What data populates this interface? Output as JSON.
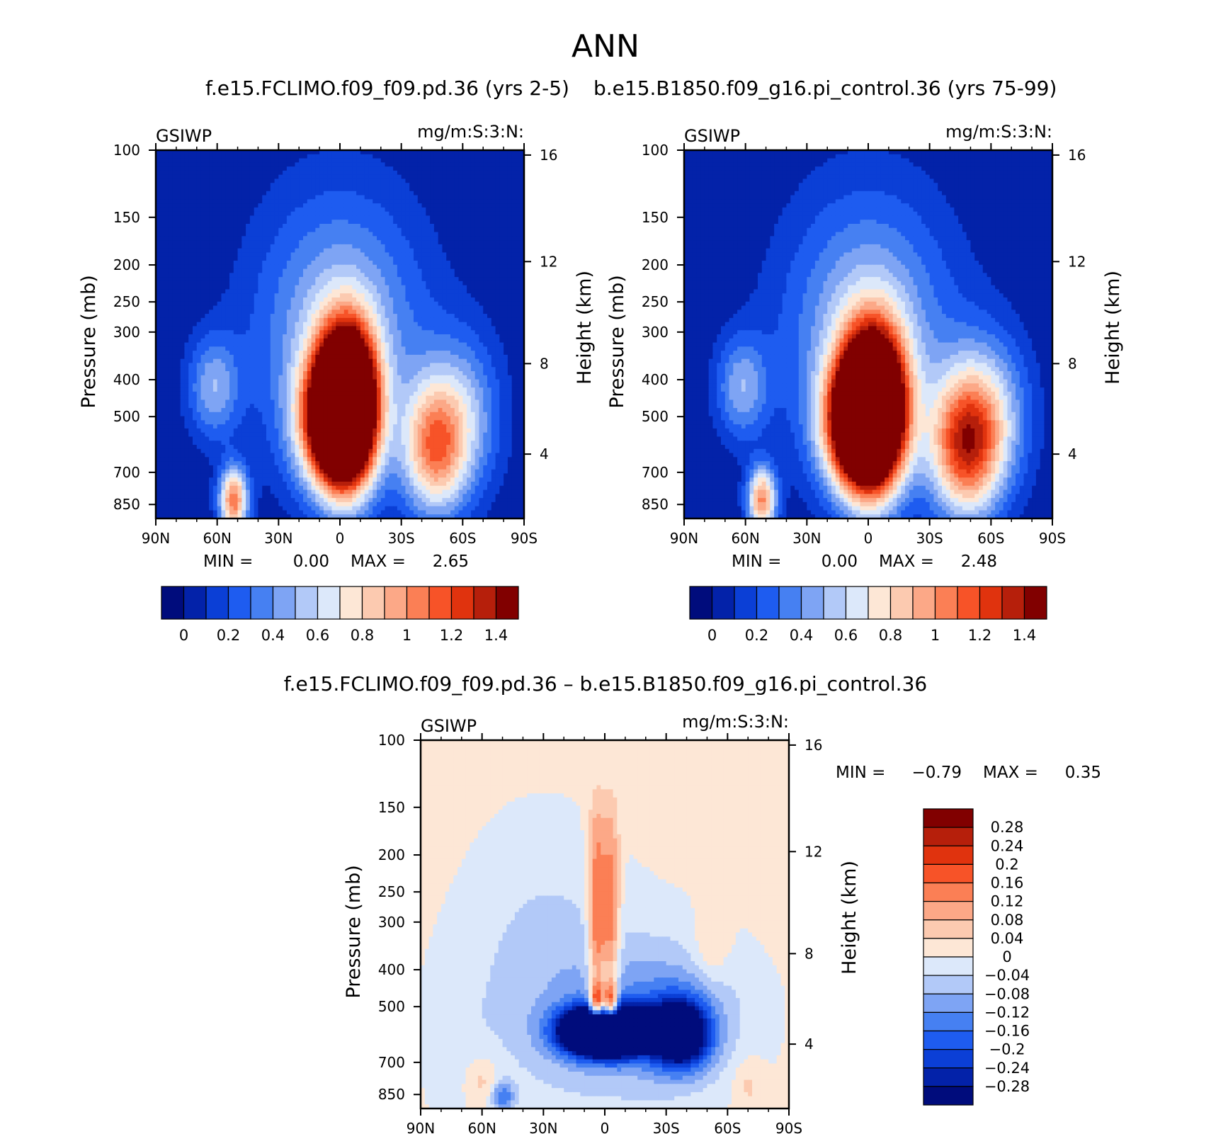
{
  "figure": {
    "title": "ANN",
    "diff_title": "f.e15.FCLIMO.f09_f09.pd.36 – b.e15.B1850.f09_g16.pi_control.36"
  },
  "chart_data": [
    {
      "type": "heatmap",
      "title": "f.e15.FCLIMO.f09_f09.pd.36 (yrs 2-5)",
      "left_label": "GSIWP",
      "units": "mg/m:S:3:N:",
      "ylabel": "Pressure (mb)",
      "y2label": "Height (km)",
      "xticks": [
        "90N",
        "60N",
        "30N",
        "0",
        "30S",
        "60S",
        "90S"
      ],
      "yticks": [
        100,
        150,
        200,
        250,
        300,
        400,
        500,
        700,
        850
      ],
      "y2ticks": [
        16,
        12,
        8,
        4
      ],
      "min_text": "MIN =",
      "min_value": "0.00",
      "max_text": "MAX =",
      "max_value": "2.65",
      "colorbar_ticks": [
        "0",
        "0.2",
        "0.4",
        "0.6",
        "0.8",
        "1",
        "1.2",
        "1.4"
      ],
      "levels": [
        0,
        0.1,
        0.2,
        0.3,
        0.4,
        0.5,
        0.6,
        0.7,
        0.8,
        0.9,
        1.0,
        1.1,
        1.2,
        1.3,
        1.4
      ],
      "colors": [
        "#000c7c",
        "#0322a9",
        "#0b3fd6",
        "#1e5cf0",
        "#4680f2",
        "#7ea4f4",
        "#b2c9f8",
        "#dce8fa",
        "#fde7d6",
        "#fccab0",
        "#fca887",
        "#fb7f55",
        "#f75328",
        "#e0330e",
        "#b61f0b",
        "#810000"
      ],
      "features": [
        {
          "lat": -3,
          "p": 470,
          "amp": 2.65,
          "sx": 10,
          "sy": 0.32
        },
        {
          "lat": 5,
          "p": 520,
          "amp": 1.0,
          "sx": 12,
          "sy": 0.26
        },
        {
          "lat": -46,
          "p": 610,
          "amp": 0.85,
          "sx": 11,
          "sy": 0.28
        },
        {
          "lat": -60,
          "p": 500,
          "amp": 0.45,
          "sx": 14,
          "sy": 0.35
        },
        {
          "lat": 52,
          "p": 830,
          "amp": 1.05,
          "sx": 5,
          "sy": 0.14
        },
        {
          "lat": 62,
          "p": 420,
          "amp": 0.45,
          "sx": 9,
          "sy": 0.22
        },
        {
          "lat": 0,
          "p": 300,
          "amp": 0.55,
          "sx": 30,
          "sy": 0.6
        }
      ]
    },
    {
      "type": "heatmap",
      "title": "b.e15.B1850.f09_g16.pi_control.36 (yrs 75-99)",
      "left_label": "GSIWP",
      "units": "mg/m:S:3:N:",
      "ylabel": "Pressure (mb)",
      "y2label": "Height (km)",
      "xticks": [
        "90N",
        "60N",
        "30N",
        "0",
        "30S",
        "60S",
        "90S"
      ],
      "yticks": [
        100,
        150,
        200,
        250,
        300,
        400,
        500,
        700,
        850
      ],
      "y2ticks": [
        16,
        12,
        8,
        4
      ],
      "min_text": "MIN =",
      "min_value": "0.00",
      "max_text": "MAX =",
      "max_value": "2.48",
      "colorbar_ticks": [
        "0",
        "0.2",
        "0.4",
        "0.6",
        "0.8",
        "1",
        "1.2",
        "1.4"
      ],
      "levels": [
        0,
        0.1,
        0.2,
        0.3,
        0.4,
        0.5,
        0.6,
        0.7,
        0.8,
        0.9,
        1.0,
        1.1,
        1.2,
        1.3,
        1.4
      ],
      "colors": [
        "#000c7c",
        "#0322a9",
        "#0b3fd6",
        "#1e5cf0",
        "#4680f2",
        "#7ea4f4",
        "#b2c9f8",
        "#dce8fa",
        "#fde7d6",
        "#fccab0",
        "#fca887",
        "#fb7f55",
        "#f75328",
        "#e0330e",
        "#b61f0b",
        "#810000"
      ],
      "features": [
        {
          "lat": -2,
          "p": 480,
          "amp": 2.48,
          "sx": 11,
          "sy": 0.33
        },
        {
          "lat": 6,
          "p": 530,
          "amp": 1.1,
          "sx": 12,
          "sy": 0.25
        },
        {
          "lat": -47,
          "p": 600,
          "amp": 1.05,
          "sx": 12,
          "sy": 0.3
        },
        {
          "lat": -60,
          "p": 500,
          "amp": 0.5,
          "sx": 14,
          "sy": 0.35
        },
        {
          "lat": 52,
          "p": 830,
          "amp": 1.0,
          "sx": 5,
          "sy": 0.14
        },
        {
          "lat": 62,
          "p": 420,
          "amp": 0.45,
          "sx": 9,
          "sy": 0.22
        },
        {
          "lat": 0,
          "p": 300,
          "amp": 0.55,
          "sx": 30,
          "sy": 0.6
        }
      ]
    },
    {
      "type": "heatmap",
      "title": "",
      "left_label": "GSIWP",
      "units": "mg/m:S:3:N:",
      "ylabel": "Pressure (mb)",
      "y2label": "Height (km)",
      "xticks": [
        "90N",
        "60N",
        "30N",
        "0",
        "30S",
        "60S",
        "90S"
      ],
      "yticks": [
        100,
        150,
        200,
        250,
        300,
        400,
        500,
        700,
        850
      ],
      "y2ticks": [
        16,
        12,
        8,
        4
      ],
      "min_text": "MIN =",
      "min_value": "−0.79",
      "max_text": "MAX =",
      "max_value": "0.35",
      "colorbar_ticks": [
        "0.28",
        "0.24",
        "0.2",
        "0.16",
        "0.12",
        "0.08",
        "0.04",
        "0",
        "−0.04",
        "−0.08",
        "−0.12",
        "−0.16",
        "−0.2",
        "−0.24",
        "−0.28"
      ],
      "levels": [
        -0.28,
        -0.24,
        -0.2,
        -0.16,
        -0.12,
        -0.08,
        -0.04,
        0,
        0.04,
        0.08,
        0.12,
        0.16,
        0.2,
        0.24,
        0.28
      ],
      "colors": [
        "#000c7c",
        "#0322a9",
        "#0b3fd6",
        "#1e5cf0",
        "#4680f2",
        "#7ea4f4",
        "#b2c9f8",
        "#dce8fa",
        "#fde7d6",
        "#fccab0",
        "#fca887",
        "#fb7f55",
        "#f75328",
        "#e0330e",
        "#b61f0b",
        "#810000"
      ],
      "base": 0.01,
      "features": [
        {
          "lat": 0,
          "p": 580,
          "amp": -0.79,
          "sx": 14,
          "sy": 0.1
        },
        {
          "lat": -37,
          "p": 590,
          "amp": -0.4,
          "sx": 10,
          "sy": 0.14
        },
        {
          "lat": -30,
          "p": 520,
          "amp": -0.1,
          "sx": 25,
          "sy": 0.28
        },
        {
          "lat": 5,
          "p": 560,
          "amp": -0.06,
          "sx": 40,
          "sy": 0.45
        },
        {
          "lat": -3,
          "p": 500,
          "amp": 0.35,
          "sx": 2.5,
          "sy": 0.09
        },
        {
          "lat": 4,
          "p": 500,
          "amp": 0.35,
          "sx": 2.5,
          "sy": 0.09
        },
        {
          "lat": -3,
          "p": 330,
          "amp": 0.16,
          "sx": 3,
          "sy": 0.3
        },
        {
          "lat": 4,
          "p": 330,
          "amp": 0.18,
          "sx": 3,
          "sy": 0.3
        },
        {
          "lat": -3,
          "p": 190,
          "amp": 0.08,
          "sx": 3,
          "sy": 0.25
        },
        {
          "lat": 4,
          "p": 190,
          "amp": 0.09,
          "sx": 3,
          "sy": 0.25
        },
        {
          "lat": 30,
          "p": 330,
          "amp": -0.045,
          "sx": 25,
          "sy": 0.5
        },
        {
          "lat": -52,
          "p": 350,
          "amp": 0.06,
          "sx": 6,
          "sy": 0.15
        },
        {
          "lat": 60,
          "p": 790,
          "amp": 0.07,
          "sx": 6,
          "sy": 0.12
        },
        {
          "lat": -70,
          "p": 800,
          "amp": 0.05,
          "sx": 5,
          "sy": 0.12
        },
        {
          "lat": 50,
          "p": 860,
          "amp": -0.15,
          "sx": 4,
          "sy": 0.06
        },
        {
          "lat": 70,
          "p": 650,
          "amp": -0.02,
          "sx": 12,
          "sy": 0.4
        }
      ]
    }
  ]
}
